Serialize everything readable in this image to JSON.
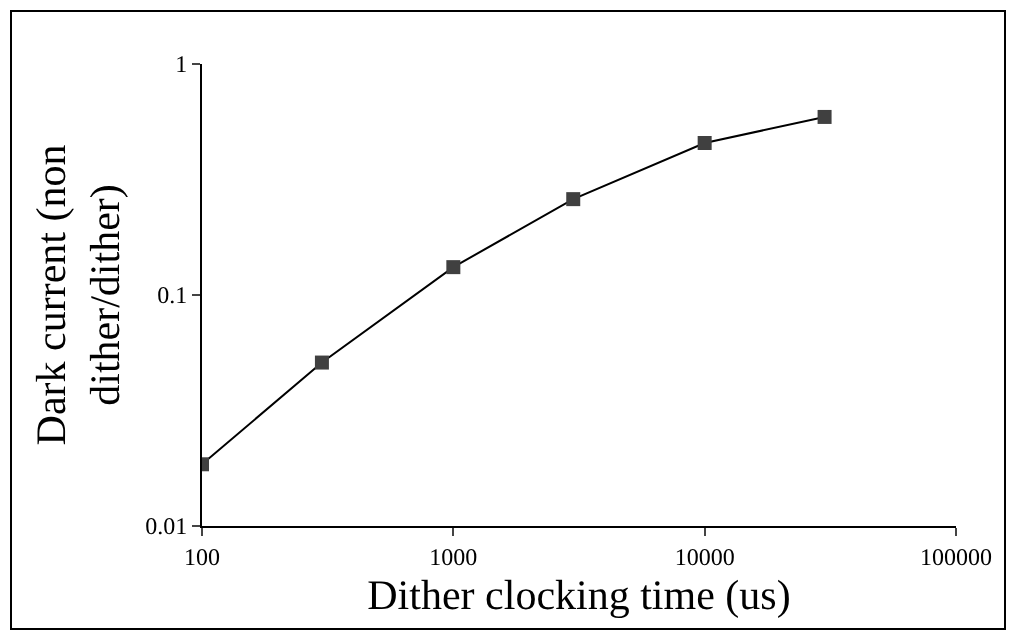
{
  "chart_data": {
    "type": "line",
    "xlabel": "Dither clocking time (us)",
    "ylabel": "Dark current (non dither/dither)",
    "x": [
      100,
      300,
      1000,
      3000,
      10000,
      30000
    ],
    "series": [
      {
        "color": "#404040",
        "values": [
          0.0185,
          0.051,
          0.132,
          0.26,
          0.455,
          0.59
        ]
      }
    ],
    "log": "xy",
    "xlim": [
      100,
      100000
    ],
    "ylim": [
      0.01,
      1
    ],
    "xticks": [
      100,
      1000,
      10000,
      100000
    ],
    "yticks": [
      0.01,
      0.1,
      1
    ],
    "marker": "square",
    "line_style": "solid",
    "grid": false
  }
}
